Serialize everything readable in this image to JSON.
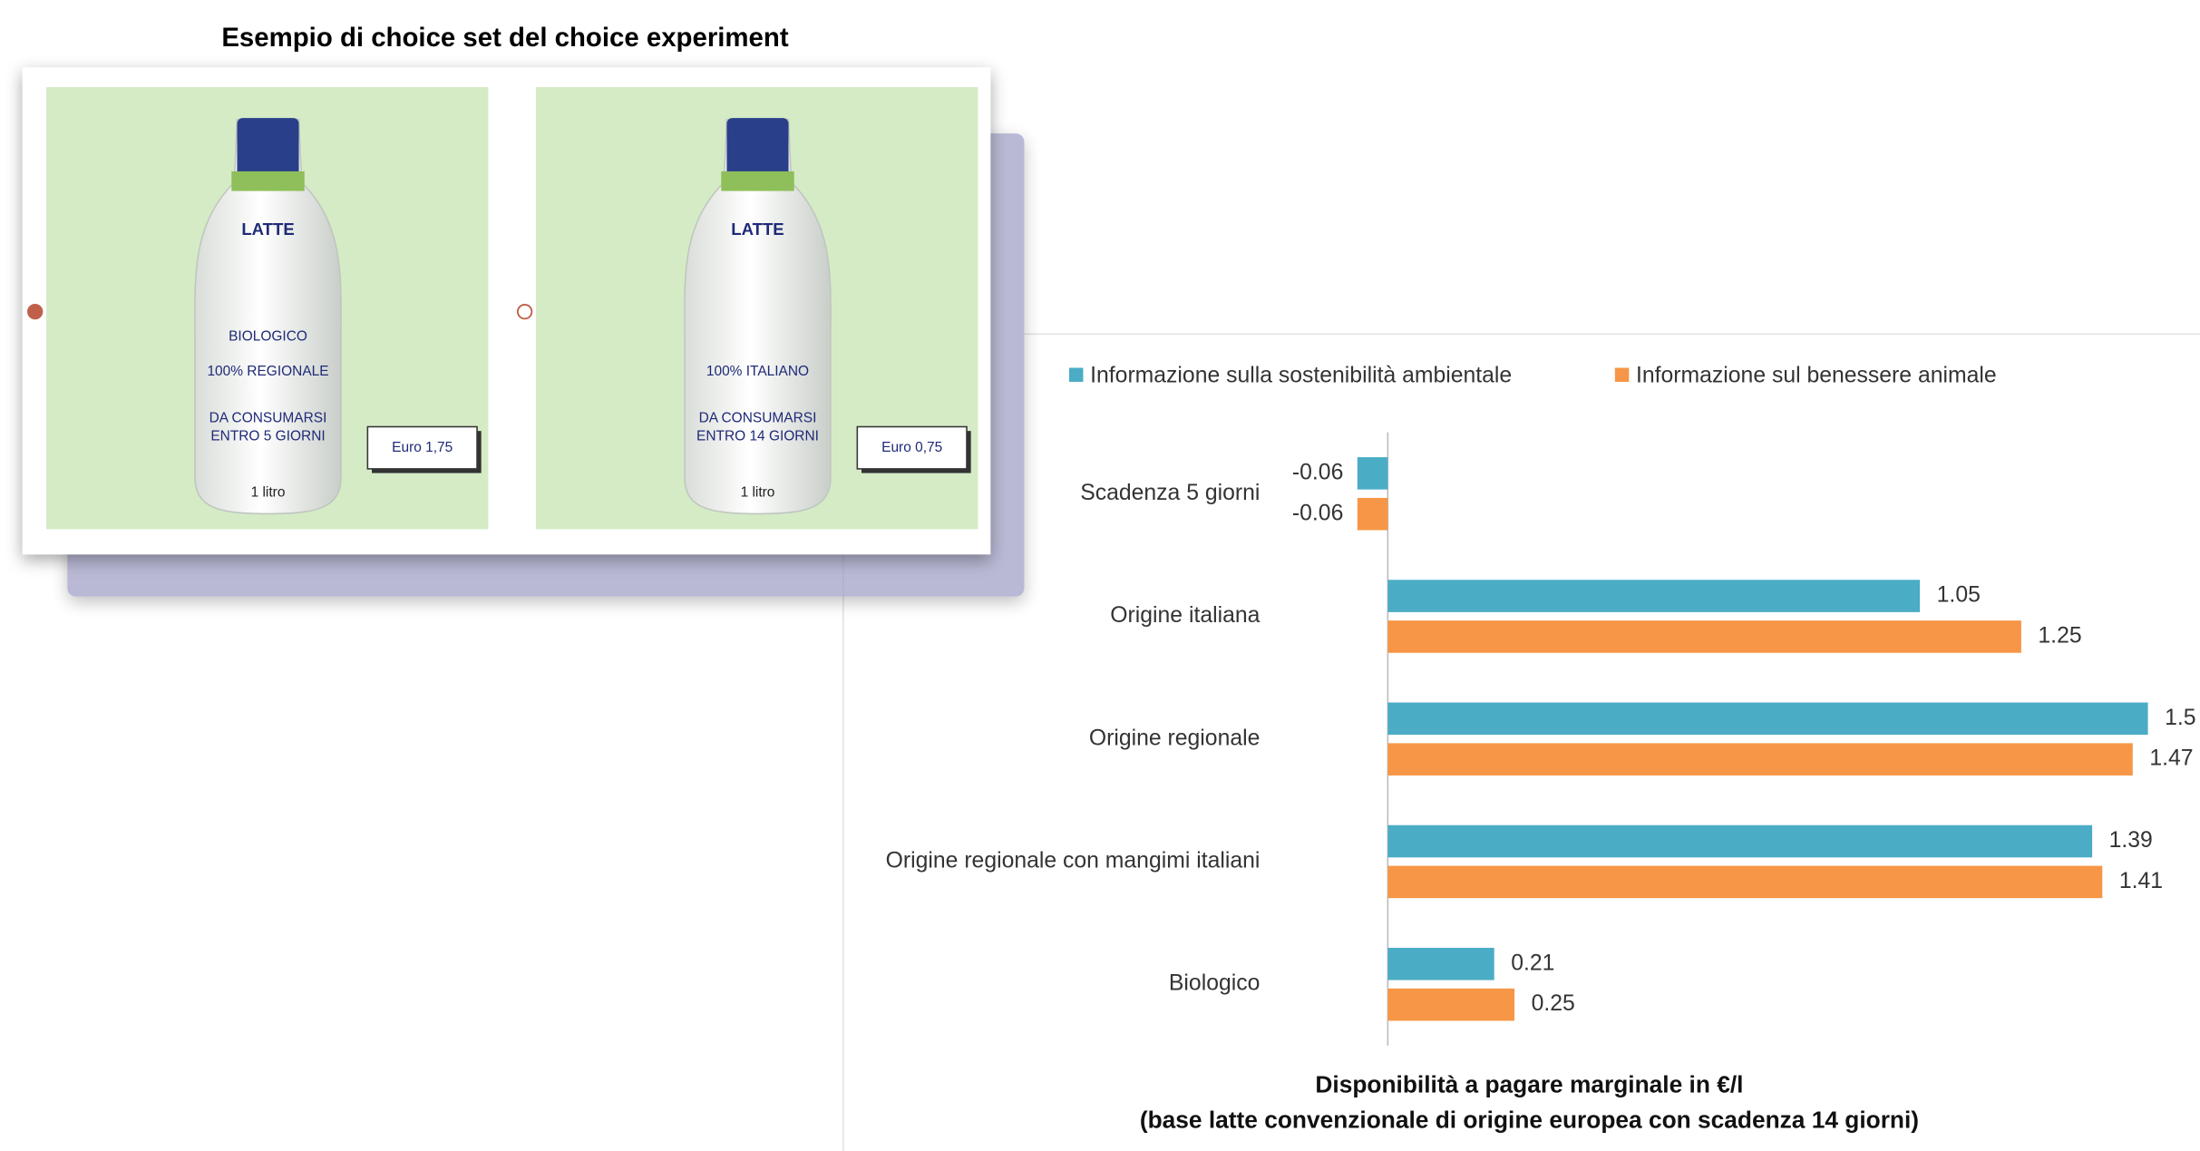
{
  "choice_set": {
    "title": "Esempio di choice set del choice experiment",
    "options": [
      {
        "selected": true,
        "brand": "LATTE",
        "lines": [
          "BIOLOGICO",
          "100% REGIONALE",
          "DA CONSUMARSI",
          "ENTRO 5 GIORNI"
        ],
        "price": "Euro 1,75",
        "size": "1 litro"
      },
      {
        "selected": false,
        "brand": "LATTE",
        "lines": [
          "100% ITALIANO",
          "DA CONSUMARSI",
          "ENTRO 14 GIORNI"
        ],
        "price": "Euro 0,75",
        "size": "1 litro"
      }
    ]
  },
  "chart_data": {
    "type": "bar",
    "orientation": "horizontal",
    "categories": [
      "Scadenza 5 giorni",
      "Origine italiana",
      "Origine regionale",
      "Origine regionale con mangimi italiani",
      "Biologico"
    ],
    "series": [
      {
        "name": "Informazione sulla sostenibilità ambientale",
        "color": "#4bacc6",
        "values": [
          -0.06,
          1.05,
          1.5,
          1.39,
          0.21
        ]
      },
      {
        "name": "Informazione sul benessere animale",
        "color": "#f79646",
        "values": [
          -0.06,
          1.25,
          1.47,
          1.41,
          0.25
        ]
      }
    ],
    "xlim": [
      -0.1,
      1.6
    ],
    "xlabel": [
      "Disponibilità a pagare marginale in €/l",
      "(base latte convenzionale di origine europea con scadenza 14 giorni)"
    ],
    "legend": "top"
  }
}
